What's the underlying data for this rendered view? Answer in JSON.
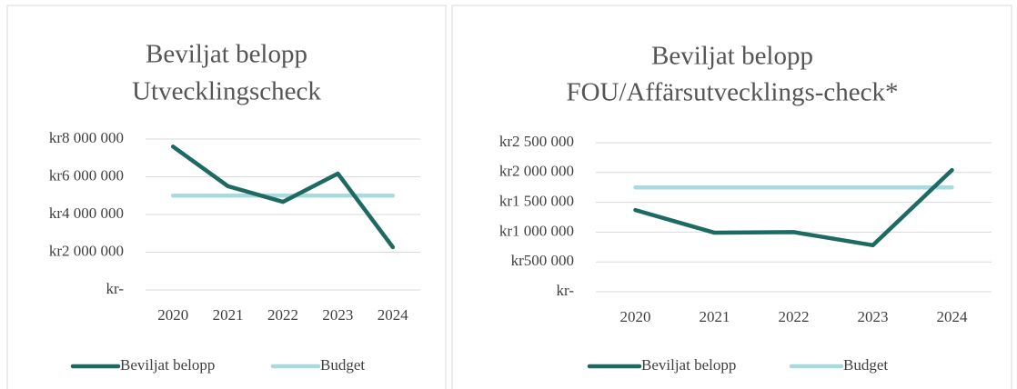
{
  "chart_data": [
    {
      "type": "line",
      "title": "Beviljat belopp",
      "subtitle": "Utvecklingscheck",
      "categories": [
        "2020",
        "2021",
        "2022",
        "2023",
        "2024"
      ],
      "series": [
        {
          "name": "Beviljat belopp",
          "color": "#1d6a62",
          "values": [
            7600000,
            5500000,
            4670000,
            6170000,
            2270000
          ]
        },
        {
          "name": "Budget",
          "color": "#a8dbe0",
          "values": [
            5000000,
            5000000,
            5000000,
            5000000,
            5000000
          ]
        }
      ],
      "ylim": [
        0,
        8000000
      ],
      "yticks": [
        {
          "value": 0,
          "label": "kr-"
        },
        {
          "value": 2000000,
          "label": "kr2 000 000"
        },
        {
          "value": 4000000,
          "label": "kr4 000 000"
        },
        {
          "value": 6000000,
          "label": "kr6 000 000"
        },
        {
          "value": 8000000,
          "label": "kr8 000 000"
        }
      ],
      "grid": true,
      "legend": "bottom"
    },
    {
      "type": "line",
      "title": "Beviljat belopp",
      "subtitle": "FOU/Affärsutvecklings-check*",
      "categories": [
        "2020",
        "2021",
        "2022",
        "2023",
        "2024"
      ],
      "series": [
        {
          "name": "Beviljat belopp",
          "color": "#1d6a62",
          "values": [
            1370000,
            990000,
            1000000,
            780000,
            2040000
          ]
        },
        {
          "name": "Budget",
          "color": "#a8dbe0",
          "values": [
            1750000,
            1750000,
            1750000,
            1750000,
            1750000
          ]
        }
      ],
      "ylim": [
        0,
        2500000
      ],
      "yticks": [
        {
          "value": 0,
          "label": "kr-"
        },
        {
          "value": 500000,
          "label": "kr500 000"
        },
        {
          "value": 1000000,
          "label": "kr1 000 000"
        },
        {
          "value": 1500000,
          "label": "kr1 500 000"
        },
        {
          "value": 2000000,
          "label": "kr2 000 000"
        },
        {
          "value": 2500000,
          "label": "kr2 500 000"
        }
      ],
      "grid": true,
      "legend": "bottom"
    }
  ]
}
